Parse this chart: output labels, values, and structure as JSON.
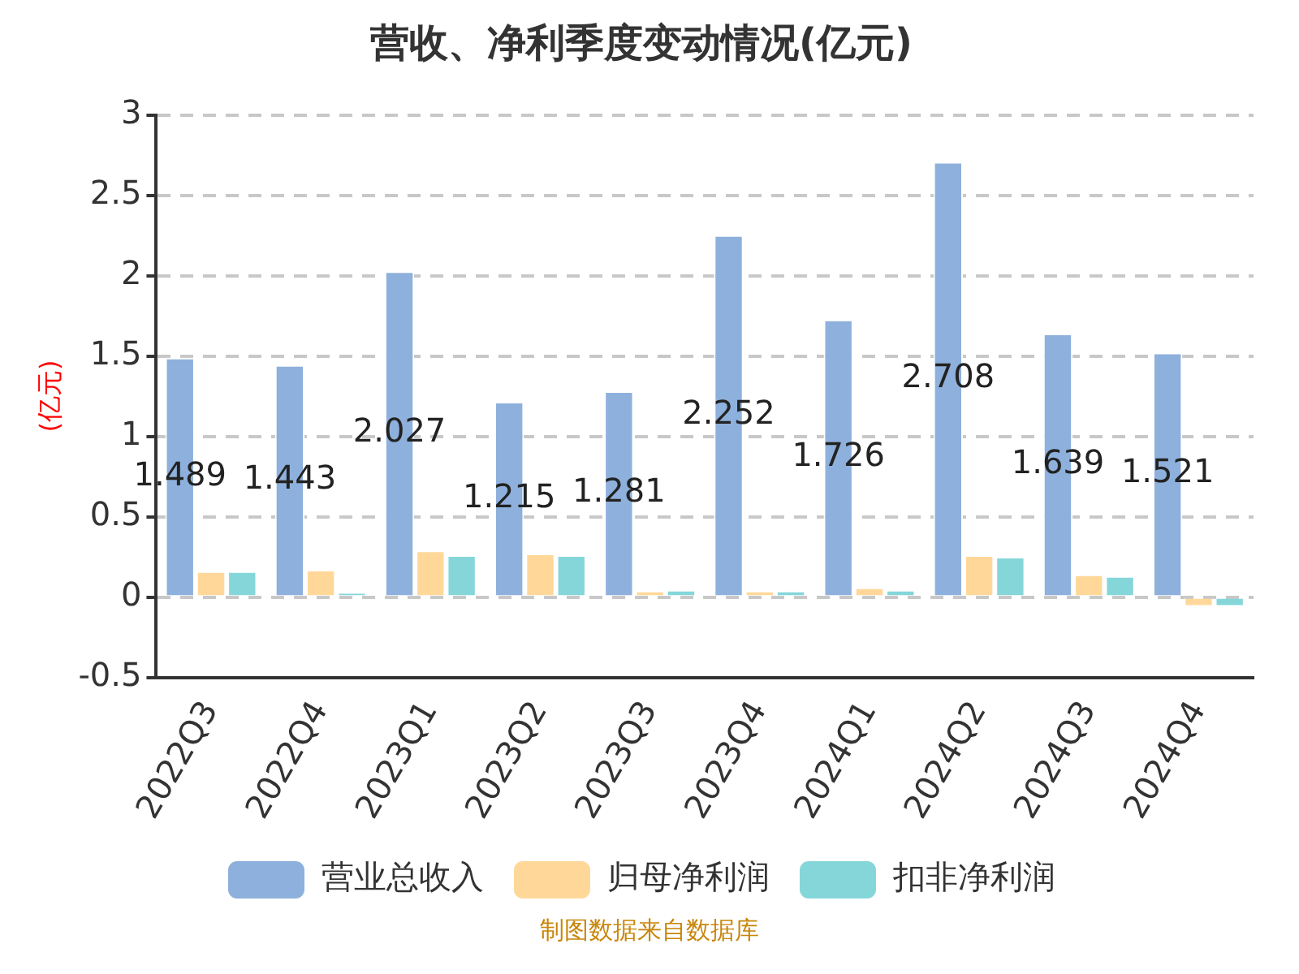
{
  "chart_data": {
    "type": "bar",
    "title": "营收、净利季度变动情况(亿元)",
    "ylabel": "(亿元)",
    "categories": [
      "2022Q3",
      "2022Q4",
      "2023Q1",
      "2023Q2",
      "2023Q3",
      "2023Q4",
      "2024Q1",
      "2024Q2",
      "2024Q3",
      "2024Q4"
    ],
    "series": [
      {
        "name": "营业总收入",
        "color": "#8eb0dc",
        "values": [
          1.489,
          1.443,
          2.027,
          1.215,
          1.281,
          2.252,
          1.726,
          2.708,
          1.639,
          1.521
        ],
        "value_labels": [
          "1.489",
          "1.443",
          "2.027",
          "1.215",
          "1.281",
          "2.252",
          "1.726",
          "2.708",
          "1.639",
          "1.521"
        ]
      },
      {
        "name": "归母净利润",
        "color": "#ffd899",
        "values": [
          0.16,
          0.17,
          0.29,
          0.27,
          0.04,
          0.04,
          0.06,
          0.26,
          0.14,
          -0.06
        ]
      },
      {
        "name": "扣非净利润",
        "color": "#85d6d9",
        "values": [
          0.16,
          0.03,
          0.26,
          0.26,
          0.045,
          0.04,
          0.045,
          0.25,
          0.13,
          -0.06
        ]
      }
    ],
    "ylim": [
      -0.5,
      3
    ],
    "yticks": [
      -0.5,
      0,
      0.5,
      1,
      1.5,
      2,
      2.5,
      3
    ],
    "grid": "y",
    "legend": "bottom",
    "annotations": [
      "制图数据来自数据库"
    ]
  }
}
